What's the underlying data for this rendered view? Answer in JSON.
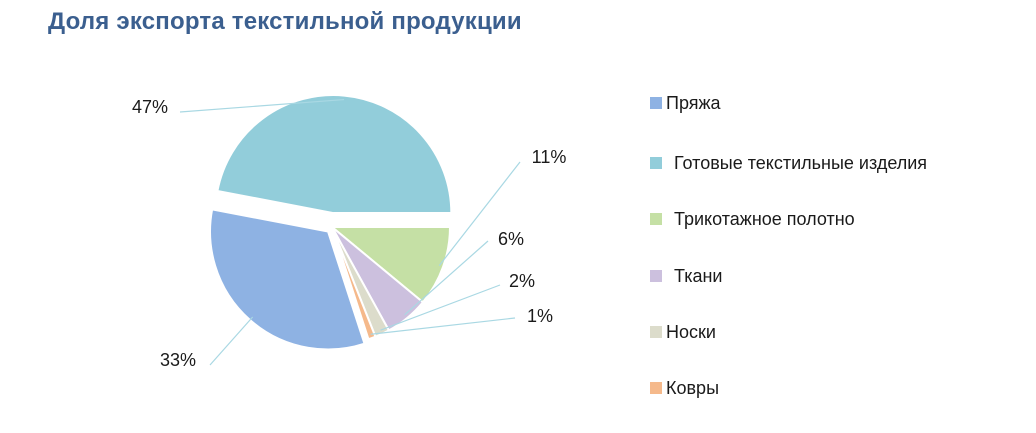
{
  "chart_data": {
    "type": "pie",
    "title": "Доля экспорта текстильной продукции",
    "slices": [
      {
        "label": "Пряжа",
        "value": 33,
        "data_label": "33%",
        "color": "#8eb2e3"
      },
      {
        "label": "Готовые текстильные изделия",
        "value": 47,
        "data_label": "47%",
        "color": "#92cdda"
      },
      {
        "label": "Трикотажное полотно",
        "value": 11,
        "data_label": "11%",
        "color": "#c5e0a5"
      },
      {
        "label": "Ткани",
        "value": 6,
        "data_label": "6%",
        "color": "#ccc0de"
      },
      {
        "label": "Носки",
        "value": 2,
        "data_label": "2%",
        "color": "#dcdccb"
      },
      {
        "label": "Ковры",
        "value": 1,
        "data_label": "1%",
        "color": "#f5b98b"
      }
    ],
    "legend_position": "right",
    "leader_line_color": "#a9d8e3"
  }
}
